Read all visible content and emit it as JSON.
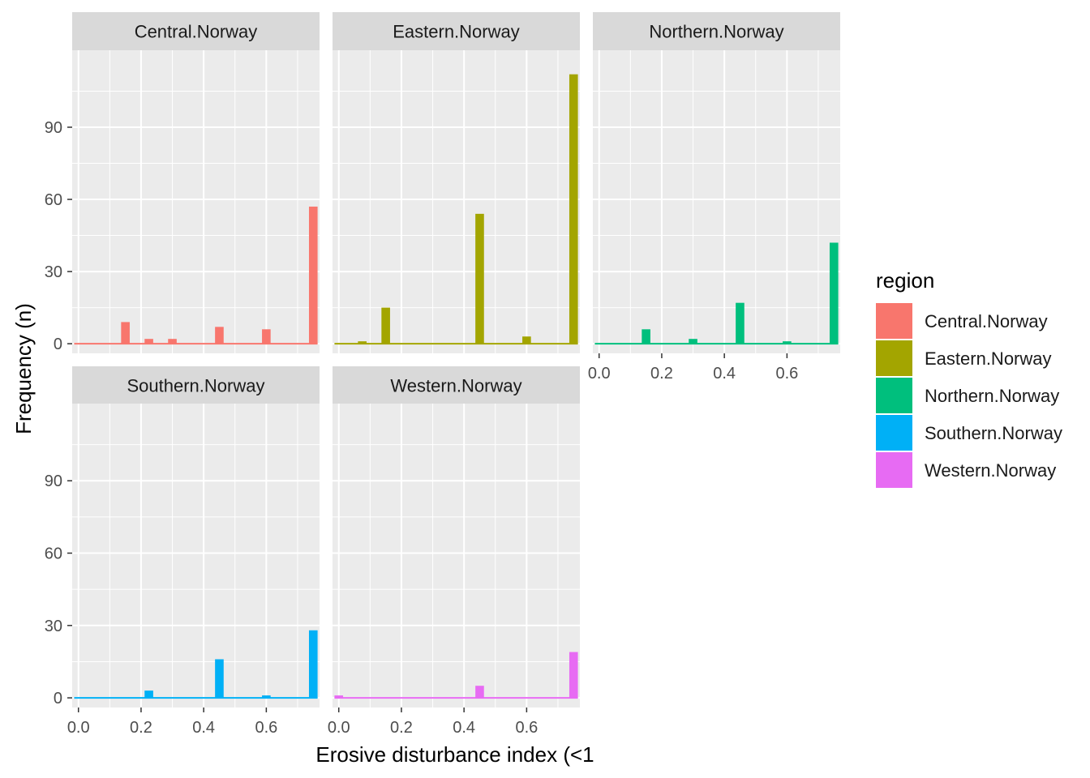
{
  "chart_data": {
    "type": "bar",
    "subtype": "faceted histogram",
    "xlabel": "Erosive disturbance index (<1",
    "ylabel": "Frequency (n)",
    "xlim": [
      -0.02,
      0.77
    ],
    "ylim": [
      -4,
      122
    ],
    "x_ticks": [
      "0.0",
      "0.2",
      "0.4",
      "0.6"
    ],
    "y_ticks": [
      "0",
      "30",
      "60",
      "90"
    ],
    "x_tick_values": [
      0,
      0.2,
      0.4,
      0.6
    ],
    "y_tick_values": [
      0,
      30,
      60,
      90
    ],
    "bin_width": 0.0275,
    "grid": true,
    "legend": {
      "title": "region",
      "position": "right",
      "items": [
        {
          "label": "Central.Norway",
          "color": "#F8766D"
        },
        {
          "label": "Eastern.Norway",
          "color": "#A3A500"
        },
        {
          "label": "Northern.Norway",
          "color": "#00BF7D"
        },
        {
          "label": "Southern.Norway",
          "color": "#00B0F6"
        },
        {
          "label": "Western.Norway",
          "color": "#E76BF3"
        }
      ]
    },
    "panels": [
      {
        "title": "Central.Norway",
        "color": "#F8766D",
        "bins": [
          {
            "x": 0.15,
            "y": 9
          },
          {
            "x": 0.225,
            "y": 2
          },
          {
            "x": 0.3,
            "y": 2
          },
          {
            "x": 0.45,
            "y": 7
          },
          {
            "x": 0.6,
            "y": 6
          },
          {
            "x": 0.75,
            "y": 57
          }
        ]
      },
      {
        "title": "Eastern.Norway",
        "color": "#A3A500",
        "bins": [
          {
            "x": 0.075,
            "y": 1
          },
          {
            "x": 0.15,
            "y": 15
          },
          {
            "x": 0.45,
            "y": 54
          },
          {
            "x": 0.6,
            "y": 3
          },
          {
            "x": 0.75,
            "y": 112
          }
        ]
      },
      {
        "title": "Northern.Norway",
        "color": "#00BF7D",
        "bins": [
          {
            "x": 0.15,
            "y": 6
          },
          {
            "x": 0.3,
            "y": 2
          },
          {
            "x": 0.45,
            "y": 17
          },
          {
            "x": 0.6,
            "y": 1
          },
          {
            "x": 0.75,
            "y": 42
          }
        ]
      },
      {
        "title": "Southern.Norway",
        "color": "#00B0F6",
        "bins": [
          {
            "x": 0.225,
            "y": 3
          },
          {
            "x": 0.45,
            "y": 16
          },
          {
            "x": 0.6,
            "y": 1
          },
          {
            "x": 0.75,
            "y": 28
          }
        ]
      },
      {
        "title": "Western.Norway",
        "color": "#E76BF3",
        "bins": [
          {
            "x": 0.0,
            "y": 1
          },
          {
            "x": 0.45,
            "y": 5
          },
          {
            "x": 0.75,
            "y": 19
          }
        ]
      }
    ]
  }
}
